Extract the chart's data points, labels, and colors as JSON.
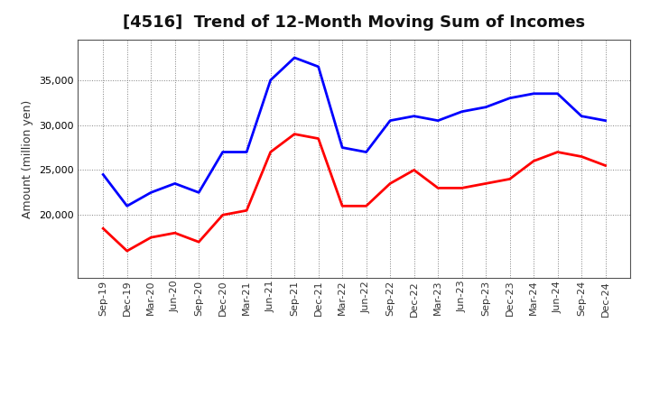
{
  "title": "[4516]  Trend of 12-Month Moving Sum of Incomes",
  "ylabel": "Amount (million yen)",
  "labels": [
    "Sep-19",
    "Dec-19",
    "Mar-20",
    "Jun-20",
    "Sep-20",
    "Dec-20",
    "Mar-21",
    "Jun-21",
    "Sep-21",
    "Dec-21",
    "Mar-22",
    "Jun-22",
    "Sep-22",
    "Dec-22",
    "Mar-23",
    "Jun-23",
    "Sep-23",
    "Dec-23",
    "Mar-24",
    "Jun-24",
    "Sep-24",
    "Dec-24"
  ],
  "ordinary_income": [
    24500,
    21000,
    22500,
    23500,
    22500,
    27000,
    27000,
    35000,
    37500,
    36500,
    27500,
    27000,
    30500,
    31000,
    30500,
    31500,
    32000,
    33000,
    33500,
    33500,
    31000,
    30500
  ],
  "net_income": [
    18500,
    16000,
    17500,
    18000,
    17000,
    20000,
    20500,
    27000,
    29000,
    28500,
    21000,
    21000,
    23500,
    25000,
    23000,
    23000,
    23500,
    24000,
    26000,
    27000,
    26500,
    25500
  ],
  "ordinary_color": "#0000FF",
  "net_color": "#FF0000",
  "background_color": "#FFFFFF",
  "plot_bg_color": "#FFFFFF",
  "grid_color": "#808080",
  "ylim_min": 13000,
  "ylim_max": 39500,
  "yticks": [
    20000,
    25000,
    30000,
    35000
  ],
  "title_fontsize": 13,
  "tick_fontsize": 8,
  "ylabel_fontsize": 9,
  "legend_fontsize": 10
}
